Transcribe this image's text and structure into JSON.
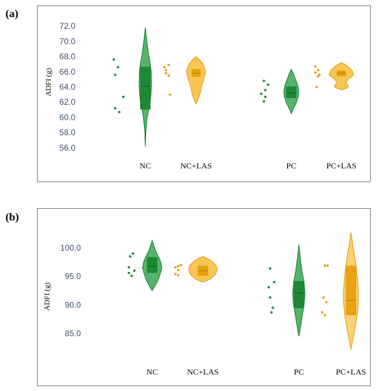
{
  "panels": [
    {
      "label": "(a)"
    },
    {
      "label": "(b)"
    }
  ],
  "colors": {
    "nc": "#1f9a3a",
    "nc_dark": "#15802c",
    "las": "#f7b21b",
    "las_dark": "#e39a05",
    "frame": "#7f7f7f",
    "tick_text": "#3b4f6b"
  },
  "chart_data": [
    {
      "type": "violin",
      "ylabel": "ADFI (g)",
      "ylim": [
        55,
        73
      ],
      "yticks": [
        56,
        58,
        60,
        62,
        64,
        66,
        68,
        70,
        72
      ],
      "ytick_labels": [
        "56.0",
        "58.0",
        "60.0",
        "62.0",
        "64.0",
        "66.0",
        "68.0",
        "70.0",
        "72.0"
      ],
      "grid": false,
      "categories": [
        "NC",
        "NC+LAS",
        "PC",
        "PC+LAS"
      ],
      "groups": [
        {
          "category": "NC",
          "color": "nc",
          "points": [
            67.6,
            66.6,
            65.6,
            62.7,
            61.2,
            60.7
          ],
          "box": {
            "q1": 61.1,
            "median": 64.1,
            "q3": 66.6
          },
          "violin": [
            [
              56.2,
              0
            ],
            [
              58,
              0.08
            ],
            [
              60,
              0.3
            ],
            [
              61,
              0.55
            ],
            [
              62,
              0.8
            ],
            [
              63.5,
              0.95
            ],
            [
              64.5,
              1
            ],
            [
              66,
              0.95
            ],
            [
              67,
              0.8
            ],
            [
              68.5,
              0.5
            ],
            [
              70,
              0.25
            ],
            [
              71.8,
              0
            ]
          ]
        },
        {
          "category": "NC+LAS",
          "color": "las",
          "points": [
            66.9,
            66.6,
            66.2,
            65.8,
            65.5,
            63.0
          ],
          "box": {
            "q1": 65.4,
            "median": 65.8,
            "q3": 66.3
          },
          "violin": [
            [
              61.8,
              0
            ],
            [
              62.5,
              0.25
            ],
            [
              63.3,
              0.45
            ],
            [
              64,
              0.55
            ],
            [
              65,
              0.8
            ],
            [
              66,
              1
            ],
            [
              67,
              0.75
            ],
            [
              67.6,
              0.35
            ],
            [
              68.0,
              0
            ]
          ]
        },
        {
          "category": "PC",
          "color": "nc",
          "points": [
            64.8,
            64.3,
            63.6,
            63.1,
            62.7,
            62.1
          ],
          "box": {
            "q1": 62.6,
            "median": 63.2,
            "q3": 64.0
          },
          "violin": [
            [
              60.5,
              0
            ],
            [
              61.2,
              0.3
            ],
            [
              62,
              0.7
            ],
            [
              62.8,
              0.95
            ],
            [
              63.5,
              1
            ],
            [
              64.2,
              0.85
            ],
            [
              65,
              0.55
            ],
            [
              65.8,
              0.25
            ],
            [
              66.3,
              0
            ]
          ]
        },
        {
          "category": "PC+LAS",
          "color": "las",
          "points": [
            66.7,
            66.2,
            65.9,
            65.6,
            65.4,
            64.0
          ],
          "box": {
            "q1": 65.5,
            "median": 65.8,
            "q3": 66.1
          },
          "violin": [
            [
              63.6,
              0
            ],
            [
              63.9,
              0.5
            ],
            [
              64.2,
              0.55
            ],
            [
              64.6,
              0.35
            ],
            [
              65.1,
              0.6
            ],
            [
              65.6,
              1
            ],
            [
              66.2,
              0.85
            ],
            [
              66.8,
              0.45
            ],
            [
              67.2,
              0
            ]
          ]
        }
      ]
    },
    {
      "type": "violin",
      "ylabel": "ADFI (g)",
      "ylim": [
        82,
        103
      ],
      "yticks": [
        85,
        90,
        95,
        100
      ],
      "ytick_labels": [
        "85.0",
        "90.0",
        "95.0",
        "100.0"
      ],
      "grid": false,
      "categories": [
        "NC",
        "NC+LAS",
        "PC",
        "PC+LAS"
      ],
      "groups": [
        {
          "category": "NC",
          "color": "nc",
          "points": [
            99.0,
            98.5,
            96.6,
            96.0,
            95.6,
            95.1
          ],
          "box": {
            "q1": 95.7,
            "median": 96.8,
            "q3": 98.3
          },
          "violin": [
            [
              92.5,
              0
            ],
            [
              93.5,
              0.35
            ],
            [
              94.5,
              0.65
            ],
            [
              95.5,
              0.85
            ],
            [
              96.5,
              1
            ],
            [
              97.5,
              0.9
            ],
            [
              98.5,
              0.65
            ],
            [
              99.5,
              0.35
            ],
            [
              101.3,
              0
            ]
          ]
        },
        {
          "category": "NC+LAS",
          "color": "las",
          "points": [
            97.0,
            96.8,
            96.6,
            96.1,
            95.4,
            95.2
          ],
          "box": {
            "q1": 95.2,
            "median": 96.0,
            "q3": 96.8
          },
          "violin": [
            [
              94.0,
              0
            ],
            [
              94.5,
              0.5
            ],
            [
              95.3,
              0.85
            ],
            [
              96.2,
              1
            ],
            [
              97.0,
              0.9
            ],
            [
              97.8,
              0.55
            ],
            [
              98.5,
              0
            ]
          ]
        },
        {
          "category": "PC",
          "color": "nc",
          "points": [
            96.4,
            94.0,
            93.1,
            91.3,
            89.5,
            88.7
          ],
          "box": {
            "q1": 89.5,
            "median": 92.1,
            "q3": 94.1
          },
          "violin": [
            [
              84.5,
              0
            ],
            [
              86,
              0.25
            ],
            [
              88,
              0.55
            ],
            [
              90,
              0.85
            ],
            [
              92,
              1
            ],
            [
              94,
              0.85
            ],
            [
              96,
              0.5
            ],
            [
              98.5,
              0.2
            ],
            [
              100.6,
              0
            ]
          ]
        },
        {
          "category": "PC+LAS",
          "color": "las",
          "points": [
            96.9,
            96.9,
            91.3,
            90.5,
            88.7,
            88.2
          ],
          "box": {
            "q1": 88.3,
            "median": 90.8,
            "q3": 96.8
          },
          "violin": [
            [
              82.2,
              0
            ],
            [
              84,
              0.25
            ],
            [
              86,
              0.55
            ],
            [
              88,
              0.8
            ],
            [
              90,
              0.95
            ],
            [
              92,
              1
            ],
            [
              94,
              0.9
            ],
            [
              96,
              0.75
            ],
            [
              98,
              0.55
            ],
            [
              100,
              0.3
            ],
            [
              102.7,
              0
            ]
          ]
        }
      ]
    }
  ]
}
